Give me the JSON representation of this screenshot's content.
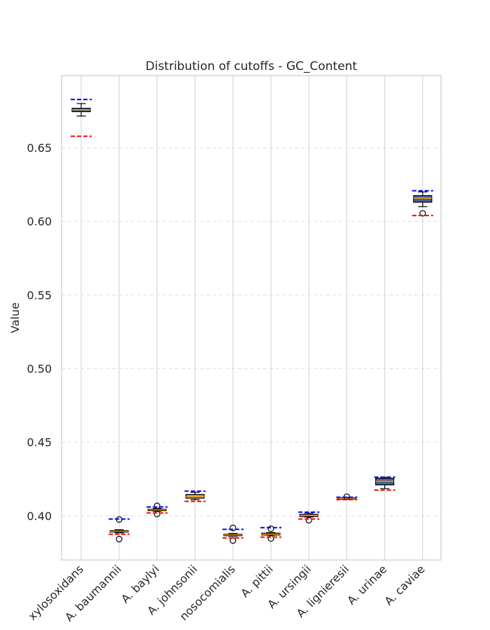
{
  "chart_data": {
    "type": "box",
    "title": "Distribution of cutoffs - GC_Content",
    "xlabel": "",
    "ylabel": "Value",
    "ylim": [
      0.37,
      0.699
    ],
    "yticks": [
      0.4,
      0.45,
      0.5,
      0.55,
      0.6,
      0.65
    ],
    "ytick_labels": [
      "0.40",
      "0.45",
      "0.50",
      "0.55",
      "0.60",
      "0.65"
    ],
    "grid": true,
    "categories": [
      "xylosoxidans",
      "A. baumannii",
      "A. baylyi",
      "A. johnsonii",
      "nosocomialis",
      "A. pittii",
      "A. ursingii",
      "A. lignieresii",
      "A. urinae",
      "A. caviae"
    ],
    "boxes": [
      {
        "whisker_low": 0.6715,
        "q1": 0.6745,
        "median": 0.6758,
        "q3": 0.6768,
        "whisker_high": 0.68,
        "outliers": [],
        "upper_cutoff": 0.6828,
        "lower_cutoff": 0.6578
      },
      {
        "whisker_low": 0.3885,
        "q1": 0.389,
        "median": 0.3895,
        "q3": 0.39,
        "whisker_high": 0.3905,
        "outliers": [
          0.3975,
          0.3842
        ],
        "upper_cutoff": 0.3978,
        "lower_cutoff": 0.3875
      },
      {
        "whisker_low": 0.4032,
        "q1": 0.4035,
        "median": 0.404,
        "q3": 0.4045,
        "whisker_high": 0.405,
        "outliers": [
          0.4068,
          0.4012
        ],
        "upper_cutoff": 0.406,
        "lower_cutoff": 0.402
      },
      {
        "whisker_low": 0.411,
        "q1": 0.412,
        "median": 0.413,
        "q3": 0.4145,
        "whisker_high": 0.416,
        "outliers": [],
        "upper_cutoff": 0.4168,
        "lower_cutoff": 0.4098
      },
      {
        "whisker_low": 0.3862,
        "q1": 0.3865,
        "median": 0.387,
        "q3": 0.3875,
        "whisker_high": 0.388,
        "outliers": [
          0.3918,
          0.3832
        ],
        "upper_cutoff": 0.3908,
        "lower_cutoff": 0.385
      },
      {
        "whisker_low": 0.3868,
        "q1": 0.387,
        "median": 0.3875,
        "q3": 0.3882,
        "whisker_high": 0.3886,
        "outliers": [
          0.3912,
          0.3846
        ],
        "upper_cutoff": 0.392,
        "lower_cutoff": 0.3855
      },
      {
        "whisker_low": 0.3992,
        "q1": 0.3995,
        "median": 0.4002,
        "q3": 0.401,
        "whisker_high": 0.4018,
        "outliers": [
          0.397
        ],
        "upper_cutoff": 0.4025,
        "lower_cutoff": 0.3978
      },
      {
        "whisker_low": 0.4115,
        "q1": 0.4117,
        "median": 0.412,
        "q3": 0.4123,
        "whisker_high": 0.4126,
        "outliers": [
          0.413
        ],
        "upper_cutoff": 0.4126,
        "lower_cutoff": 0.411
      },
      {
        "whisker_low": 0.4185,
        "q1": 0.421,
        "median": 0.4235,
        "q3": 0.4255,
        "whisker_high": 0.4262,
        "outliers": [],
        "upper_cutoff": 0.4263,
        "lower_cutoff": 0.4175
      },
      {
        "whisker_low": 0.61,
        "q1": 0.613,
        "median": 0.6158,
        "q3": 0.6175,
        "whisker_high": 0.62,
        "outliers": [
          0.6055
        ],
        "upper_cutoff": 0.6208,
        "lower_cutoff": 0.604
      }
    ],
    "colors": {
      "upper_cutoff": "#0000ff",
      "lower_cutoff": "#ff0000",
      "grid": "#dddddd",
      "axes": "#cccccc",
      "box_fill_low": "#b09090",
      "box_fill_high": "#4a5f93",
      "median": "#ffa500",
      "text": "#262626"
    }
  }
}
